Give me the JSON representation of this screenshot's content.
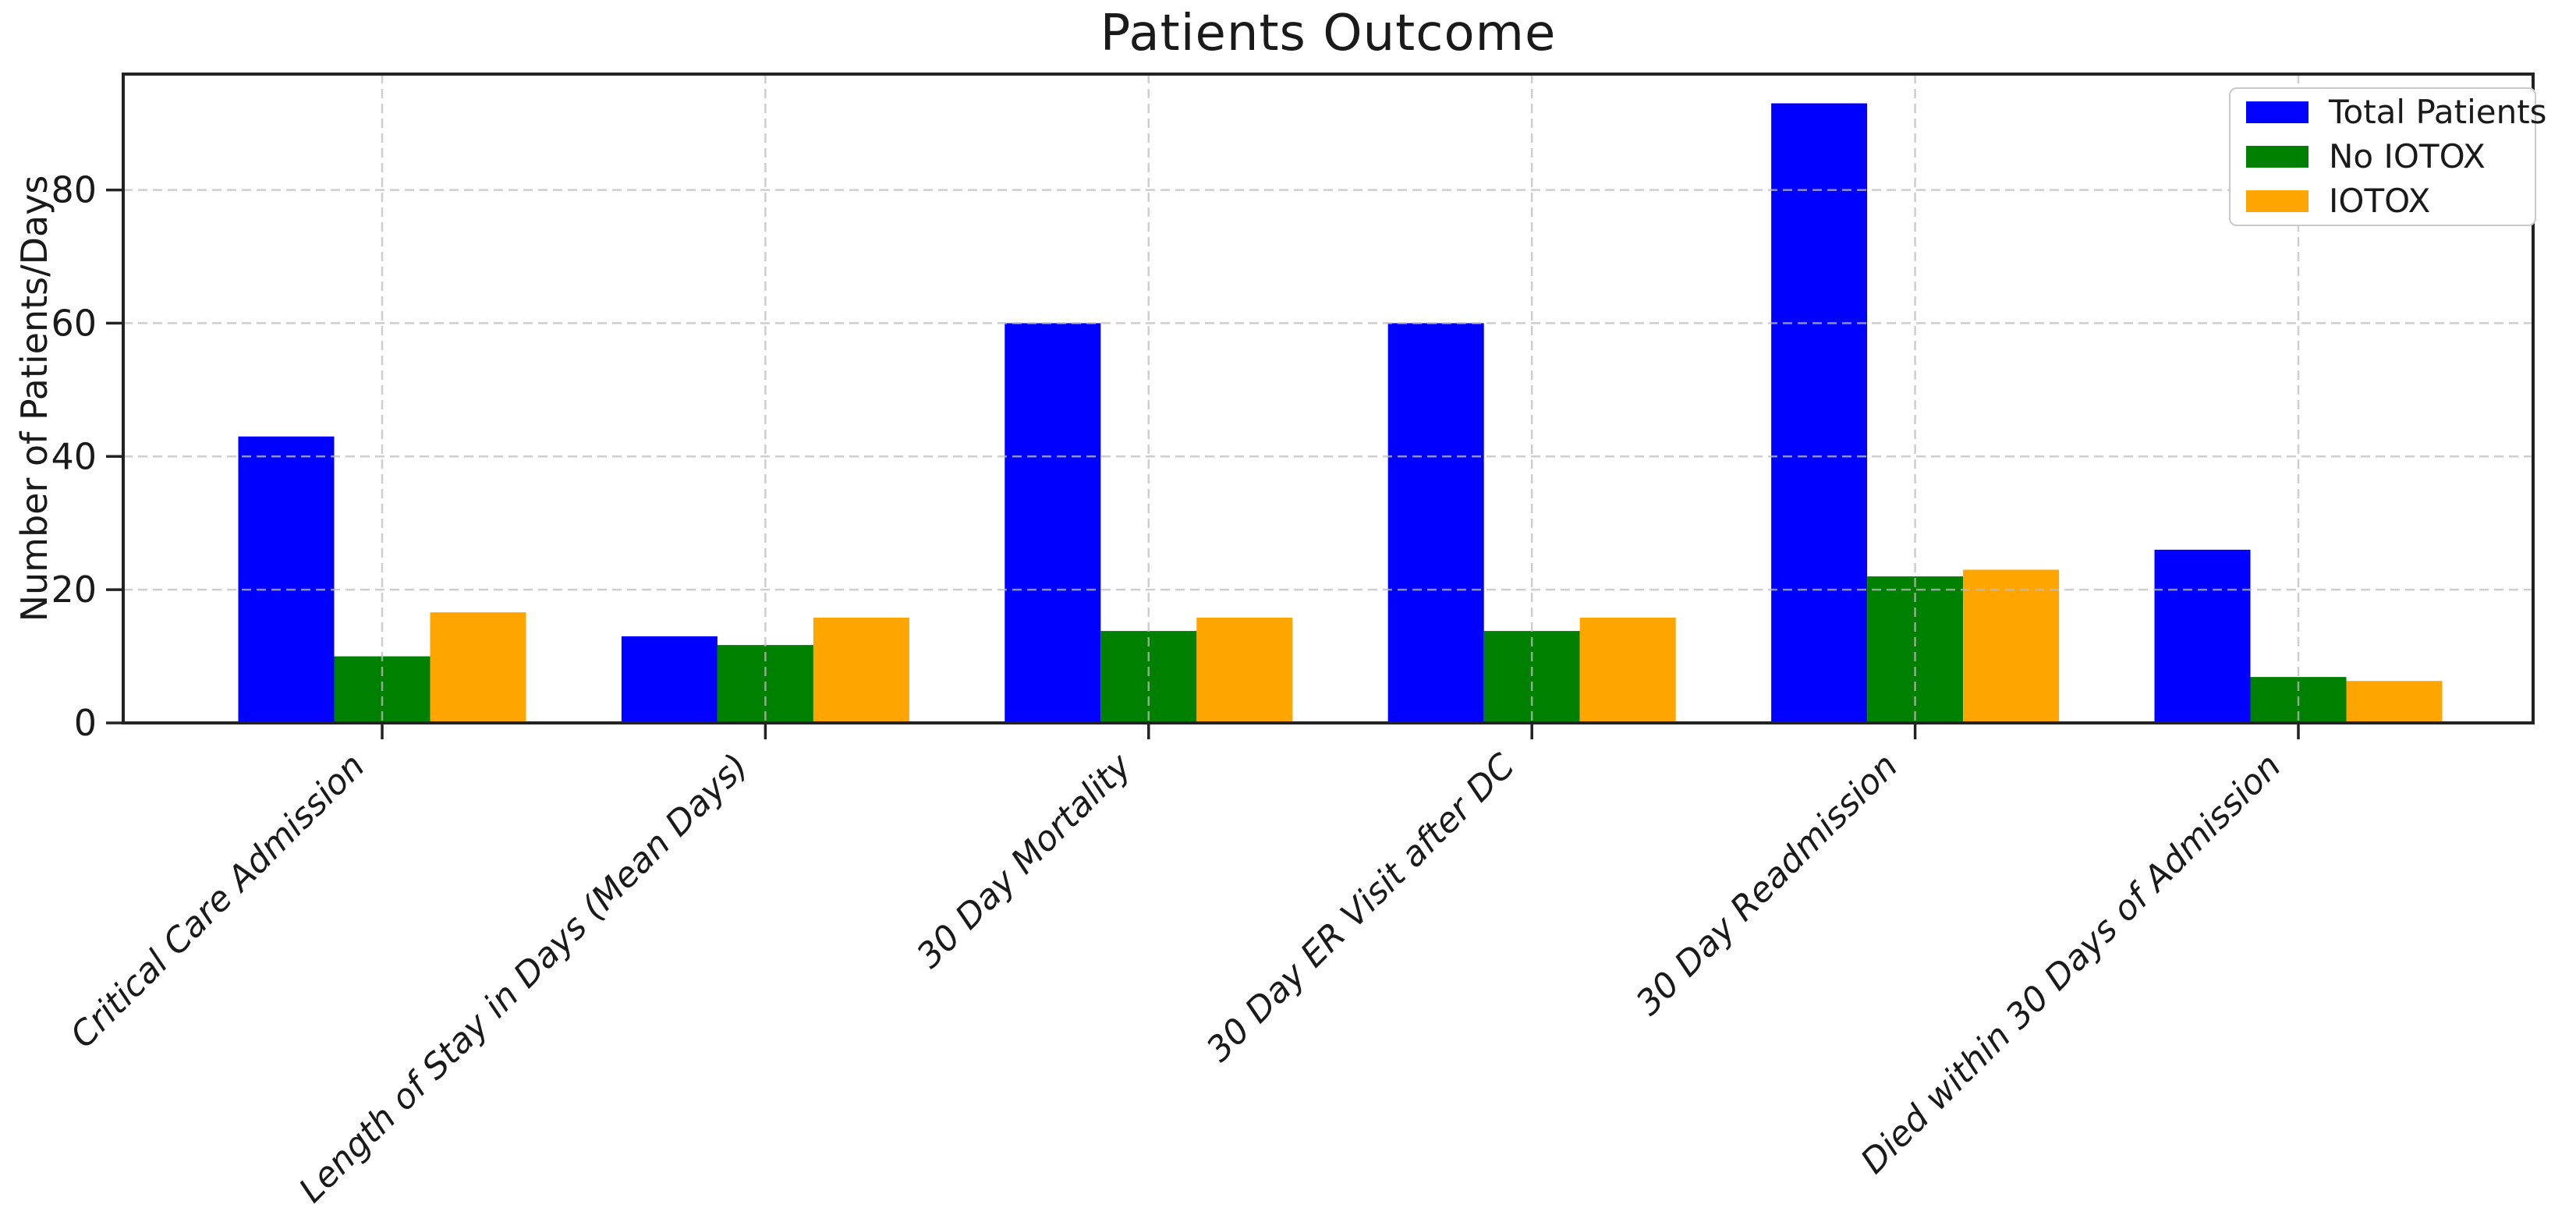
{
  "chart_data": {
    "type": "bar",
    "title": "Patients Outcome",
    "xlabel": "",
    "ylabel": "Number of Patients/Days",
    "categories": [
      "Critical Care Admission",
      "Length of Stay in Days (Mean Days)",
      "30 Day Mortality",
      "30 Day ER Visit after DC",
      "30 Day Readmission",
      "Died within 30 Days of Admission"
    ],
    "series": [
      {
        "name": "Total Patients",
        "color": "#0000ff",
        "values": [
          43,
          13,
          60,
          60,
          93,
          26
        ]
      },
      {
        "name": "No IOTOX",
        "color": "#008000",
        "values": [
          10,
          11.7,
          13.8,
          13.8,
          22,
          6.9
        ]
      },
      {
        "name": "IOTOX",
        "color": "#ffa500",
        "values": [
          16.6,
          15.8,
          15.8,
          15.8,
          23,
          6.3
        ]
      }
    ],
    "yticks": [
      0,
      20,
      40,
      60,
      80
    ],
    "ylim": [
      0,
      97
    ],
    "grid": true,
    "grid_style": "dashed",
    "grid_color": "#bdbdbd",
    "x_tick_label_style": "italic, rotated 45deg",
    "legend_position": "upper right",
    "axis_color": "#222222",
    "background_color": "#ffffff"
  }
}
